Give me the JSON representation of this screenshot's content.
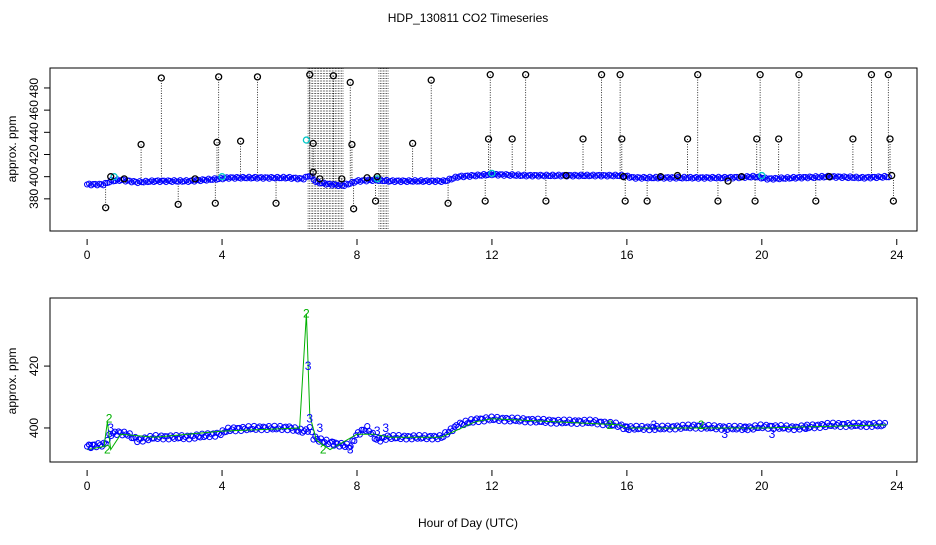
{
  "chart_data": [
    {
      "type": "scatter",
      "title": "HDP_130811  CO2 Timeseries",
      "ylabel": "approx. ppm",
      "xlabel": "",
      "xlim": [
        -1.1,
        24.6
      ],
      "ylim": [
        351,
        498
      ],
      "x_ticks": [
        0,
        4,
        8,
        12,
        16,
        20,
        24
      ],
      "y_ticks": [
        380,
        400,
        420,
        440,
        460,
        480
      ],
      "colors": {
        "flagged": "#000000",
        "good": "#0000ff",
        "cyan": "#00c8c8",
        "green": "#00b000"
      },
      "baseline": [
        {
          "x": 0.0,
          "y": 393
        },
        {
          "x": 0.5,
          "y": 393
        },
        {
          "x": 0.7,
          "y": 396
        },
        {
          "x": 1.0,
          "y": 397
        },
        {
          "x": 1.5,
          "y": 395
        },
        {
          "x": 2.0,
          "y": 396
        },
        {
          "x": 3.0,
          "y": 396
        },
        {
          "x": 3.9,
          "y": 398
        },
        {
          "x": 4.2,
          "y": 399
        },
        {
          "x": 5.0,
          "y": 399
        },
        {
          "x": 6.0,
          "y": 399
        },
        {
          "x": 6.4,
          "y": 398
        },
        {
          "x": 6.6,
          "y": 401
        },
        {
          "x": 6.8,
          "y": 395
        },
        {
          "x": 7.2,
          "y": 393
        },
        {
          "x": 7.6,
          "y": 392
        },
        {
          "x": 8.0,
          "y": 396
        },
        {
          "x": 8.5,
          "y": 397
        },
        {
          "x": 9.0,
          "y": 396
        },
        {
          "x": 10.0,
          "y": 396
        },
        {
          "x": 10.6,
          "y": 396
        },
        {
          "x": 11.0,
          "y": 400
        },
        {
          "x": 11.5,
          "y": 401
        },
        {
          "x": 12.0,
          "y": 402
        },
        {
          "x": 13.0,
          "y": 401
        },
        {
          "x": 14.0,
          "y": 401
        },
        {
          "x": 15.0,
          "y": 401
        },
        {
          "x": 15.9,
          "y": 401
        },
        {
          "x": 16.2,
          "y": 399
        },
        {
          "x": 17.0,
          "y": 399
        },
        {
          "x": 18.0,
          "y": 399
        },
        {
          "x": 19.0,
          "y": 399
        },
        {
          "x": 19.8,
          "y": 400
        },
        {
          "x": 20.2,
          "y": 398
        },
        {
          "x": 21.0,
          "y": 399
        },
        {
          "x": 22.0,
          "y": 400
        },
        {
          "x": 23.0,
          "y": 399
        },
        {
          "x": 23.8,
          "y": 400
        }
      ],
      "flagged_points": [
        {
          "x": 0.55,
          "y": 372
        },
        {
          "x": 0.7,
          "y": 400
        },
        {
          "x": 1.1,
          "y": 398
        },
        {
          "x": 1.6,
          "y": 429
        },
        {
          "x": 2.2,
          "y": 489
        },
        {
          "x": 2.7,
          "y": 375
        },
        {
          "x": 3.2,
          "y": 398
        },
        {
          "x": 3.8,
          "y": 376
        },
        {
          "x": 3.85,
          "y": 431
        },
        {
          "x": 3.9,
          "y": 490
        },
        {
          "x": 4.55,
          "y": 432
        },
        {
          "x": 5.05,
          "y": 490
        },
        {
          "x": 5.6,
          "y": 376
        },
        {
          "x": 6.6,
          "y": 492
        },
        {
          "x": 6.7,
          "y": 430
        },
        {
          "x": 6.7,
          "y": 404
        },
        {
          "x": 6.9,
          "y": 398
        },
        {
          "x": 7.3,
          "y": 491
        },
        {
          "x": 7.55,
          "y": 398
        },
        {
          "x": 7.8,
          "y": 485
        },
        {
          "x": 7.85,
          "y": 429
        },
        {
          "x": 7.9,
          "y": 371
        },
        {
          "x": 8.3,
          "y": 399
        },
        {
          "x": 8.55,
          "y": 378
        },
        {
          "x": 8.6,
          "y": 400
        },
        {
          "x": 9.65,
          "y": 430
        },
        {
          "x": 10.2,
          "y": 487
        },
        {
          "x": 10.7,
          "y": 376
        },
        {
          "x": 11.8,
          "y": 378
        },
        {
          "x": 11.9,
          "y": 434
        },
        {
          "x": 11.95,
          "y": 492
        },
        {
          "x": 12.6,
          "y": 434
        },
        {
          "x": 13.0,
          "y": 492
        },
        {
          "x": 13.6,
          "y": 378
        },
        {
          "x": 14.2,
          "y": 401
        },
        {
          "x": 14.7,
          "y": 434
        },
        {
          "x": 15.25,
          "y": 492
        },
        {
          "x": 15.8,
          "y": 492
        },
        {
          "x": 15.85,
          "y": 434
        },
        {
          "x": 15.9,
          "y": 400
        },
        {
          "x": 15.95,
          "y": 378
        },
        {
          "x": 16.6,
          "y": 378
        },
        {
          "x": 17.0,
          "y": 400
        },
        {
          "x": 17.5,
          "y": 401
        },
        {
          "x": 17.8,
          "y": 434
        },
        {
          "x": 18.1,
          "y": 492
        },
        {
          "x": 18.7,
          "y": 378
        },
        {
          "x": 19.0,
          "y": 396
        },
        {
          "x": 19.4,
          "y": 400
        },
        {
          "x": 19.8,
          "y": 378
        },
        {
          "x": 19.85,
          "y": 434
        },
        {
          "x": 19.95,
          "y": 492
        },
        {
          "x": 20.5,
          "y": 434
        },
        {
          "x": 21.1,
          "y": 492
        },
        {
          "x": 21.6,
          "y": 378
        },
        {
          "x": 22.0,
          "y": 400
        },
        {
          "x": 22.7,
          "y": 434
        },
        {
          "x": 23.25,
          "y": 492
        },
        {
          "x": 23.75,
          "y": 492
        },
        {
          "x": 23.8,
          "y": 434
        },
        {
          "x": 23.85,
          "y": 401
        },
        {
          "x": 23.9,
          "y": 378
        }
      ],
      "cyan_points": [
        {
          "x": 0.8,
          "y": 400
        },
        {
          "x": 4.0,
          "y": 400
        },
        {
          "x": 6.5,
          "y": 433
        },
        {
          "x": 8.6,
          "y": 398
        },
        {
          "x": 12.0,
          "y": 403
        },
        {
          "x": 20.0,
          "y": 401
        }
      ],
      "dense_vertical_bands": [
        [
          6.55,
          7.6
        ],
        [
          8.65,
          8.95
        ]
      ]
    },
    {
      "type": "scatter",
      "title": "",
      "ylabel": "approx. ppm",
      "xlabel": "Hour of Day (UTC)",
      "xlim": [
        -1.1,
        24.6
      ],
      "ylim": [
        389,
        442
      ],
      "x_ticks": [
        0,
        4,
        8,
        12,
        16,
        20,
        24
      ],
      "y_ticks": [
        400,
        420
      ],
      "colors": {
        "circles": "#0000ff",
        "ref_line": "#00b000",
        "label_2": "#00b000",
        "label_3": "#0000ff"
      },
      "series": [
        {
          "name": "",
          "points": [
            {
              "x": 0.0,
              "y": 394
            },
            {
              "x": 0.3,
              "y": 394.5
            },
            {
              "x": 0.5,
              "y": 394.5
            },
            {
              "x": 0.7,
              "y": 398
            },
            {
              "x": 0.9,
              "y": 398.5
            },
            {
              "x": 1.2,
              "y": 398
            },
            {
              "x": 1.5,
              "y": 396
            },
            {
              "x": 2.0,
              "y": 397
            },
            {
              "x": 3.0,
              "y": 397
            },
            {
              "x": 3.9,
              "y": 398
            },
            {
              "x": 4.2,
              "y": 399.5
            },
            {
              "x": 5.0,
              "y": 400
            },
            {
              "x": 6.0,
              "y": 400
            },
            {
              "x": 6.35,
              "y": 399
            },
            {
              "x": 6.5,
              "y": 399
            },
            {
              "x": 6.6,
              "y": 400
            },
            {
              "x": 6.7,
              "y": 397
            },
            {
              "x": 6.9,
              "y": 396
            },
            {
              "x": 7.3,
              "y": 395
            },
            {
              "x": 7.8,
              "y": 394
            },
            {
              "x": 8.0,
              "y": 398
            },
            {
              "x": 8.3,
              "y": 400
            },
            {
              "x": 8.6,
              "y": 396
            },
            {
              "x": 8.9,
              "y": 397
            },
            {
              "x": 9.5,
              "y": 397
            },
            {
              "x": 10.5,
              "y": 397
            },
            {
              "x": 11.0,
              "y": 401
            },
            {
              "x": 11.5,
              "y": 402.5
            },
            {
              "x": 12.0,
              "y": 403
            },
            {
              "x": 13.0,
              "y": 402.5
            },
            {
              "x": 14.0,
              "y": 402
            },
            {
              "x": 15.0,
              "y": 402
            },
            {
              "x": 15.7,
              "y": 401
            },
            {
              "x": 16.0,
              "y": 400
            },
            {
              "x": 17.0,
              "y": 400
            },
            {
              "x": 18.0,
              "y": 400.5
            },
            {
              "x": 19.0,
              "y": 400
            },
            {
              "x": 19.7,
              "y": 400
            },
            {
              "x": 20.0,
              "y": 400.5
            },
            {
              "x": 21.0,
              "y": 400
            },
            {
              "x": 22.0,
              "y": 401
            },
            {
              "x": 23.0,
              "y": 401
            },
            {
              "x": 23.7,
              "y": 401
            }
          ]
        }
      ],
      "ref_line": [
        {
          "x": 0.0,
          "y": 393
        },
        {
          "x": 0.5,
          "y": 394
        },
        {
          "x": 0.6,
          "y": 402
        },
        {
          "x": 0.7,
          "y": 393
        },
        {
          "x": 1.0,
          "y": 398
        },
        {
          "x": 2.0,
          "y": 397
        },
        {
          "x": 4.0,
          "y": 399
        },
        {
          "x": 6.3,
          "y": 400
        },
        {
          "x": 6.5,
          "y": 437
        },
        {
          "x": 6.6,
          "y": 404
        },
        {
          "x": 6.8,
          "y": 396
        },
        {
          "x": 7.2,
          "y": 393
        },
        {
          "x": 8.0,
          "y": 398
        },
        {
          "x": 8.5,
          "y": 398
        },
        {
          "x": 9.0,
          "y": 397
        },
        {
          "x": 10.5,
          "y": 397
        },
        {
          "x": 11.5,
          "y": 402
        },
        {
          "x": 12.0,
          "y": 403
        },
        {
          "x": 15.8,
          "y": 401
        },
        {
          "x": 16.0,
          "y": 400
        },
        {
          "x": 19.7,
          "y": 400
        },
        {
          "x": 20.0,
          "y": 400
        },
        {
          "x": 23.7,
          "y": 401
        }
      ],
      "point_labels": [
        {
          "x": 0.1,
          "y": 394,
          "text": "3"
        },
        {
          "x": 0.6,
          "y": 393,
          "text": "2"
        },
        {
          "x": 0.65,
          "y": 403,
          "text": "2"
        },
        {
          "x": 0.7,
          "y": 400,
          "text": "3"
        },
        {
          "x": 6.5,
          "y": 437,
          "text": "2"
        },
        {
          "x": 6.55,
          "y": 420,
          "text": "3"
        },
        {
          "x": 6.6,
          "y": 403,
          "text": "3"
        },
        {
          "x": 6.9,
          "y": 400,
          "text": "3"
        },
        {
          "x": 7.3,
          "y": 395,
          "text": "3"
        },
        {
          "x": 7.0,
          "y": 393,
          "text": "2"
        },
        {
          "x": 7.8,
          "y": 393,
          "text": "3"
        },
        {
          "x": 8.6,
          "y": 399,
          "text": "3"
        },
        {
          "x": 8.85,
          "y": 400,
          "text": "3"
        },
        {
          "x": 16.0,
          "y": 400,
          "text": "3"
        },
        {
          "x": 16.8,
          "y": 401,
          "text": "3"
        },
        {
          "x": 18.2,
          "y": 401,
          "text": "2"
        },
        {
          "x": 18.9,
          "y": 398,
          "text": "3"
        },
        {
          "x": 19.5,
          "y": 400,
          "text": "3"
        },
        {
          "x": 20.3,
          "y": 398,
          "text": "3"
        },
        {
          "x": 21.3,
          "y": 400,
          "text": "3"
        },
        {
          "x": 15.5,
          "y": 401,
          "text": "2"
        }
      ]
    }
  ]
}
